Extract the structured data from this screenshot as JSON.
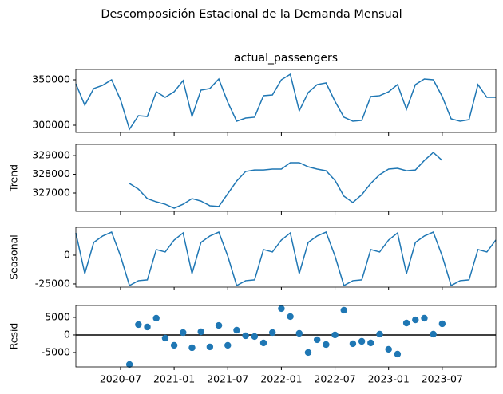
{
  "title": "Descomposición Estacional de la Demanda Mensual",
  "chart_data": [
    {
      "type": "line",
      "title": "actual_passengers",
      "color": "#1f77b4",
      "x": [
        "2020-02",
        "2020-03",
        "2020-04",
        "2020-05",
        "2020-06",
        "2020-07",
        "2020-08",
        "2020-09",
        "2020-10",
        "2020-11",
        "2020-12",
        "2021-01",
        "2021-02",
        "2021-03",
        "2021-04",
        "2021-05",
        "2021-06",
        "2021-07",
        "2021-08",
        "2021-09",
        "2021-10",
        "2021-11",
        "2021-12",
        "2022-01",
        "2022-02",
        "2022-03",
        "2022-04",
        "2022-05",
        "2022-06",
        "2022-07",
        "2022-08",
        "2022-09",
        "2022-10",
        "2022-11",
        "2022-12",
        "2023-01",
        "2023-02",
        "2023-03",
        "2023-04",
        "2023-05",
        "2023-06",
        "2023-07",
        "2023-08",
        "2023-09",
        "2023-10",
        "2023-11",
        "2023-12",
        "2024-01"
      ],
      "values": [
        345600,
        322000,
        340400,
        343900,
        350000,
        328000,
        295600,
        310500,
        309600,
        336800,
        330700,
        336800,
        349100,
        309600,
        338600,
        340400,
        350900,
        325400,
        304400,
        307900,
        308800,
        332500,
        333300,
        350000,
        356100,
        315800,
        335900,
        344700,
        346500,
        326300,
        308800,
        304400,
        305300,
        331600,
        332500,
        336800,
        344700,
        317500,
        344700,
        350900,
        350000,
        331600,
        307000,
        304400,
        306100,
        344700,
        330700,
        330700
      ],
      "xlim": [
        "2020-02",
        "2024-01"
      ],
      "ylim": [
        292100,
        361400
      ],
      "yticks": [
        300000,
        350000
      ]
    },
    {
      "type": "line",
      "ylabel": "Trend",
      "color": "#1f77b4",
      "x": [
        "2020-02",
        "2020-03",
        "2020-04",
        "2020-05",
        "2020-06",
        "2020-07",
        "2020-08",
        "2020-09",
        "2020-10",
        "2020-11",
        "2020-12",
        "2021-01",
        "2021-02",
        "2021-03",
        "2021-04",
        "2021-05",
        "2021-06",
        "2021-07",
        "2021-08",
        "2021-09",
        "2021-10",
        "2021-11",
        "2021-12",
        "2022-01",
        "2022-02",
        "2022-03",
        "2022-04",
        "2022-05",
        "2022-06",
        "2022-07",
        "2022-08",
        "2022-09",
        "2022-10",
        "2022-11",
        "2022-12",
        "2023-01",
        "2023-02",
        "2023-03",
        "2023-04",
        "2023-05",
        "2023-06",
        "2023-07",
        "2023-08",
        "2023-09",
        "2023-10",
        "2023-11",
        "2023-12",
        "2024-01"
      ],
      "values": [
        null,
        null,
        null,
        null,
        null,
        null,
        327510,
        327210,
        326700,
        326530,
        326400,
        326190,
        326400,
        326700,
        326570,
        326320,
        326280,
        326960,
        327640,
        328150,
        328230,
        328230,
        328280,
        328280,
        328620,
        328620,
        328400,
        328280,
        328190,
        327680,
        326830,
        326490,
        326910,
        327510,
        327980,
        328280,
        328320,
        328190,
        328230,
        328740,
        329170,
        328740,
        null,
        null,
        null,
        null,
        null,
        null
      ],
      "xlim": [
        "2020-02",
        "2024-01"
      ],
      "ylim": [
        326020,
        329600
      ],
      "yticks": [
        327000,
        328000,
        329000
      ]
    },
    {
      "type": "line",
      "ylabel": "Seasonal",
      "color": "#1f77b4",
      "x": [
        "2020-02",
        "2020-03",
        "2020-04",
        "2020-05",
        "2020-06",
        "2020-07",
        "2020-08",
        "2020-09",
        "2020-10",
        "2020-11",
        "2020-12",
        "2021-01",
        "2021-02",
        "2021-03",
        "2021-04",
        "2021-05",
        "2021-06",
        "2021-07",
        "2021-08",
        "2021-09",
        "2021-10",
        "2021-11",
        "2021-12",
        "2022-01",
        "2022-02",
        "2022-03",
        "2022-04",
        "2022-05",
        "2022-06",
        "2022-07",
        "2022-08",
        "2022-09",
        "2022-10",
        "2022-11",
        "2022-12",
        "2023-01",
        "2023-02",
        "2023-03",
        "2023-04",
        "2023-05",
        "2023-06",
        "2023-07",
        "2023-08",
        "2023-09",
        "2023-10",
        "2023-11",
        "2023-12",
        "2024-01"
      ],
      "values": [
        19400,
        -16000,
        11100,
        16700,
        20100,
        -700,
        -26400,
        -22200,
        -21500,
        4900,
        2800,
        13200,
        19400,
        -16000,
        11100,
        16700,
        20100,
        -700,
        -26400,
        -22200,
        -21500,
        4900,
        2800,
        13200,
        19400,
        -16000,
        11100,
        16700,
        20100,
        -700,
        -26400,
        -22200,
        -21500,
        4900,
        2800,
        13200,
        19400,
        -16000,
        11100,
        16700,
        20100,
        -700,
        -26400,
        -22200,
        -21500,
        4900,
        2800,
        13200
      ],
      "xlim": [
        "2020-02",
        "2024-01"
      ],
      "ylim": [
        -27800,
        24300
      ],
      "yticks": [
        -25000,
        0
      ]
    },
    {
      "type": "scatter",
      "ylabel": "Resid",
      "color": "#1f77b4",
      "hline": 0,
      "x": [
        "2020-02",
        "2020-03",
        "2020-04",
        "2020-05",
        "2020-06",
        "2020-07",
        "2020-08",
        "2020-09",
        "2020-10",
        "2020-11",
        "2020-12",
        "2021-01",
        "2021-02",
        "2021-03",
        "2021-04",
        "2021-05",
        "2021-06",
        "2021-07",
        "2021-08",
        "2021-09",
        "2021-10",
        "2021-11",
        "2021-12",
        "2022-01",
        "2022-02",
        "2022-03",
        "2022-04",
        "2022-05",
        "2022-06",
        "2022-07",
        "2022-08",
        "2022-09",
        "2022-10",
        "2022-11",
        "2022-12",
        "2023-01",
        "2023-02",
        "2023-03",
        "2023-04",
        "2023-05",
        "2023-06",
        "2023-07",
        "2023-08",
        "2023-09",
        "2023-10",
        "2023-11",
        "2023-12",
        "2024-01"
      ],
      "values": [
        null,
        null,
        null,
        null,
        null,
        null,
        -8400,
        2950,
        2270,
        4770,
        -900,
        -2950,
        680,
        -3640,
        900,
        -3400,
        2700,
        -2950,
        1360,
        -230,
        -450,
        -2270,
        680,
        7500,
        5230,
        450,
        -5000,
        -1360,
        -2730,
        0,
        7050,
        -2500,
        -1820,
        -2270,
        230,
        -4090,
        -5450,
        3400,
        4300,
        4770,
        230,
        3180,
        null,
        null,
        null,
        null,
        null,
        null
      ],
      "xlim": [
        "2020-02",
        "2024-01"
      ],
      "ylim": [
        -9100,
        8400
      ],
      "yticks": [
        -5000,
        0,
        5000
      ],
      "xticks": [
        "2020-07",
        "2021-01",
        "2021-07",
        "2022-01",
        "2022-07",
        "2023-01",
        "2023-07"
      ]
    }
  ]
}
